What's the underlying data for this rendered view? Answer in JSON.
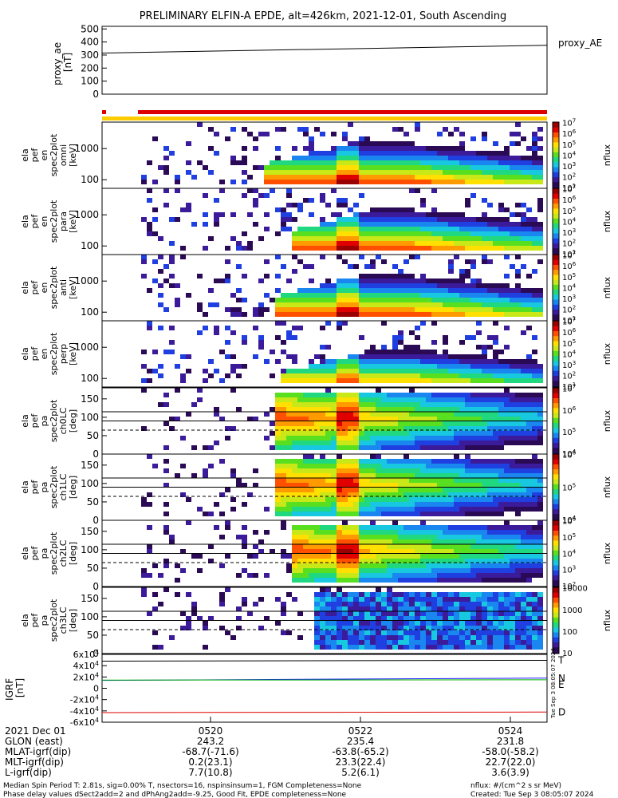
{
  "title": "PRELIMINARY ELFIN-A EPDE, alt=426km, 2021-12-01, South Ascending",
  "colors": {
    "spectrum": [
      "#2a0a55",
      "#3b1b9a",
      "#1f3fe0",
      "#1a87f0",
      "#18c8e0",
      "#20d880",
      "#58e020",
      "#c8e818",
      "#ffe000",
      "#ff9a00",
      "#ff5000",
      "#e00000",
      "#9a0000"
    ],
    "red_bar": "#dd0000",
    "yellow_bar": "#ffcc00",
    "T_line": "#000000",
    "N_line": "#1a1aff",
    "E_line": "#00b000",
    "D_line": "#dd0000"
  },
  "chart_data": [
    {
      "type": "line",
      "panel": "proxy_ae",
      "ylabel": "proxy_ae [nT]",
      "legend": "proxy_AE",
      "yticks": [
        "500",
        "400",
        "300",
        "200",
        "100",
        "0"
      ],
      "ylim": [
        0,
        520
      ],
      "x": [
        "05:19",
        "05:25"
      ],
      "series": [
        {
          "name": "proxy_AE",
          "values": [
            315,
            375
          ]
        }
      ]
    },
    {
      "type": "heatmap",
      "panel": "energy_spectra",
      "ylabel_lines": [
        "ela",
        "pef",
        "en",
        "spec2plot"
      ],
      "ylabel_variants": [
        "omni",
        "para",
        "anti",
        "perp"
      ],
      "units": "[keV]",
      "yticks": [
        "1000",
        "100"
      ],
      "colorbar_title": "nflux",
      "colorbar_ticks": [
        "10^1",
        "10^2",
        "10^3",
        "10^4",
        "10^5",
        "10^6",
        "10^7"
      ]
    },
    {
      "type": "heatmap",
      "panel": "pitch_angle_spectra",
      "ylabel_lines": [
        "ela",
        "pef",
        "pa",
        "spec2plot"
      ],
      "ylabel_variants": [
        "ch0LC",
        "ch1LC",
        "ch2LC",
        "ch3LC"
      ],
      "units": "[deg]",
      "yticks": [
        "150",
        "100",
        "50",
        "0"
      ],
      "colorbar_title": "nflux",
      "colorbar_ticks": [
        [
          "10^4",
          "10^5",
          "10^6",
          "10^7"
        ],
        [
          "10^4",
          "10^5",
          "10^6"
        ],
        [
          "10^2",
          "10^3",
          "10^4",
          "10^5",
          "10^6"
        ],
        [
          "10",
          "100",
          "1000",
          "10000"
        ]
      ]
    },
    {
      "type": "line",
      "panel": "igrf",
      "ylabel": "IGRF [nT]",
      "yticks": [
        "6x10^4",
        "4x10^4",
        "2x10^4",
        "0",
        "-2x10^4",
        "-4x10^4",
        "-6x10^4"
      ],
      "ylim": [
        -60000,
        60000
      ],
      "legend": [
        "T",
        "N",
        "E",
        "D"
      ],
      "series": [
        {
          "name": "T",
          "values": [
            48000,
            49500
          ]
        },
        {
          "name": "N",
          "values": [
            14000,
            18000
          ]
        },
        {
          "name": "E",
          "values": [
            14500,
            15000
          ]
        },
        {
          "name": "D",
          "values": [
            -43000,
            -42000
          ]
        }
      ]
    }
  ],
  "xaxis": {
    "row_labels": [
      "2021 Dec 01",
      "GLON (east)",
      "MLAT-igrf(dip)",
      "MLT-igrf(dip)",
      "L-igrf(dip)"
    ],
    "ticks": [
      {
        "time": "0520",
        "glon": "243.2",
        "mlat": "-68.7(-71.6)",
        "mlt": "0.2(23.1)",
        "l": "7.7(10.8)"
      },
      {
        "time": "0522",
        "glon": "235.4",
        "mlat": "-63.8(-65.2)",
        "mlt": "23.3(22.4)",
        "l": "5.2(6.1)"
      },
      {
        "time": "0524",
        "glon": "231.8",
        "mlat": "-58.0(-58.2)",
        "mlt": "22.7(22.0)",
        "l": "3.6(3.9)"
      }
    ]
  },
  "side_stamp": "Tue Sep 3 08:05:07 2024",
  "footer": {
    "line1": "Median Spin Period T: 2.81s, sig=0.00% T, nsectors=16, nspinsinsum=1, FGM Completeness=None",
    "line2": "Phase delay values dSect2add=2 and dPhAng2add=-9.25, Good Fit, EPDE completeness=None",
    "units": "nflux: #/(cm^2 s sr MeV)",
    "created": "Created: Tue Sep  3 08:05:07 2024"
  }
}
